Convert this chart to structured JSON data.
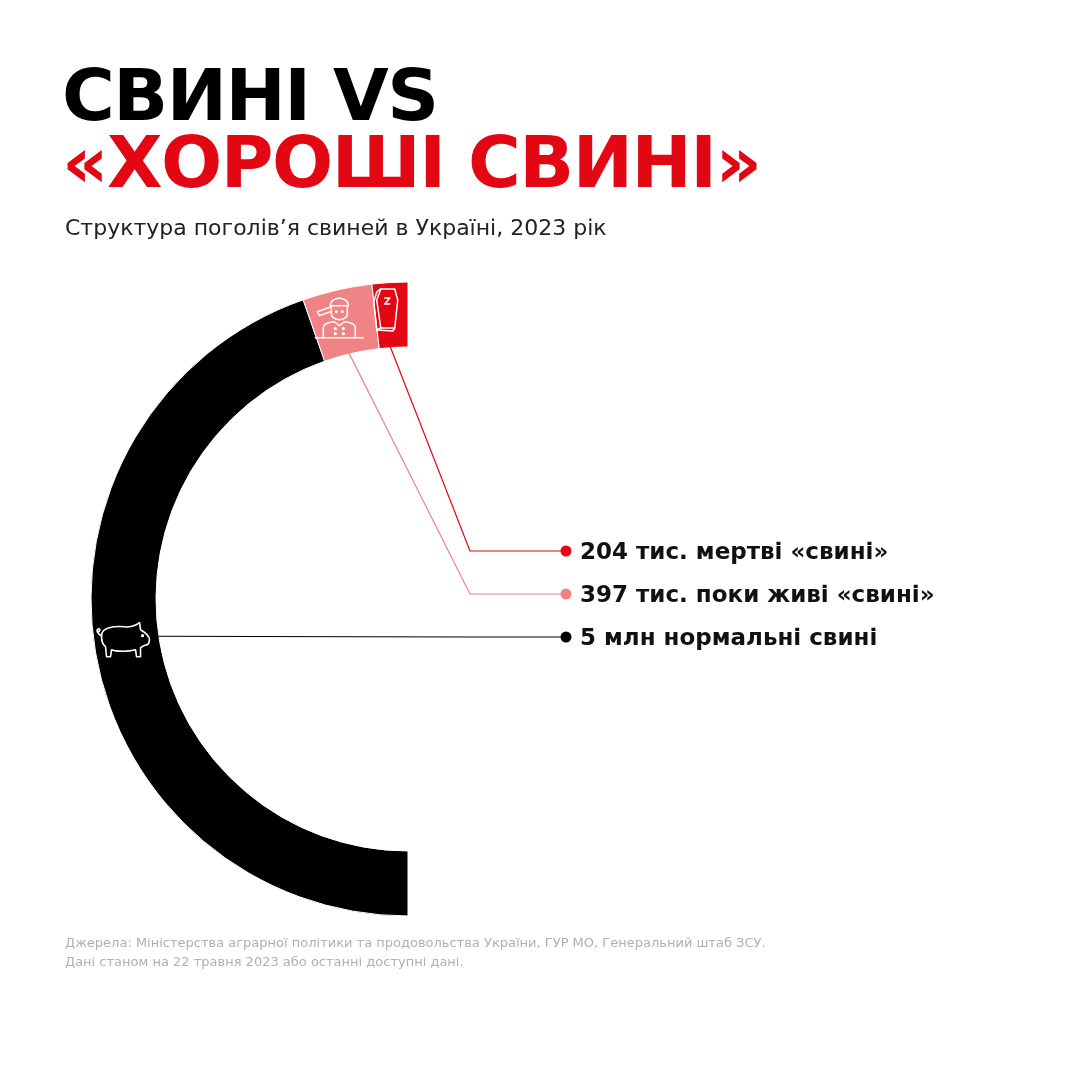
{
  "chart_data": {
    "type": "donut",
    "title": "СВИНІ VS\n«ХОРОШІ СВИНІ»",
    "subtitle": "Структура поголів’я свиней в Україні, 2023 рік",
    "categories": [
      "5 млн нормальні свині",
      "397 тис. поки живі «свині»",
      "204 тис. мертві «свині»"
    ],
    "values": [
      89.27,
      7.09,
      3.64
    ],
    "colors": [
      "#000000",
      "#f08385",
      "#e30613"
    ],
    "legend": "right",
    "annotations": [
      "Джерела: Міністерства аграрної політики та продовольства України, ГУР МО, Генеральний штаб ЗСУ.",
      "Дані станом на 22 травня 2023 або останні доступні дані."
    ]
  }
}
